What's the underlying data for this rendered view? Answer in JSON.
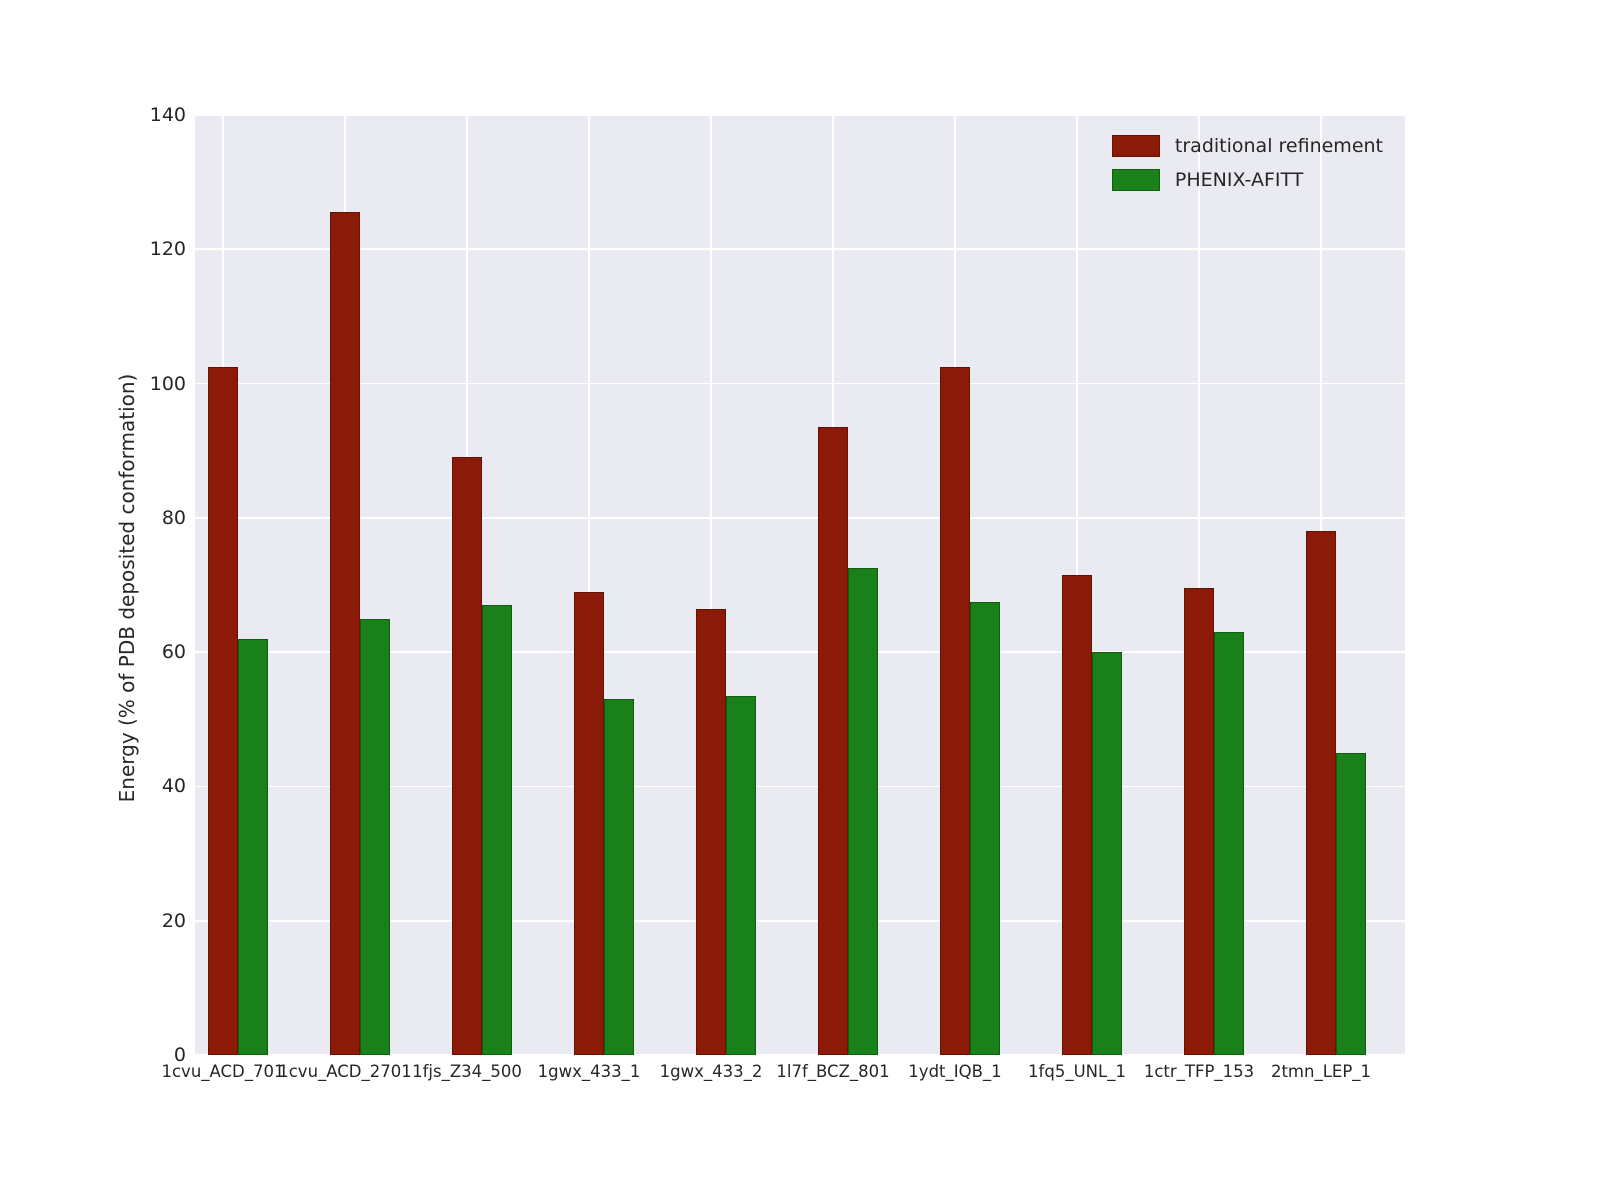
{
  "chart_data": {
    "type": "bar",
    "title": "",
    "xlabel": "",
    "ylabel": "Energy (% of PDB deposited conformation)",
    "ylim": [
      0,
      140
    ],
    "yticks": [
      0,
      20,
      40,
      60,
      80,
      100,
      120,
      140
    ],
    "grid": true,
    "legend_position": "upper right",
    "plot_background": "#eaeaf2",
    "categories": [
      "1cvu_ACD_701",
      "1cvu_ACD_2701",
      "1fjs_Z34_500",
      "1gwx_433_1",
      "1gwx_433_2",
      "1l7f_BCZ_801",
      "1ydt_IQB_1",
      "1fq5_UNL_1",
      "1ctr_TFP_153",
      "2tmn_LEP_1"
    ],
    "series": [
      {
        "name": "traditional refinement",
        "color": "#8b1a09",
        "values": [
          102.5,
          125.5,
          89,
          69,
          66.5,
          93.5,
          102.5,
          71.5,
          69.5,
          78
        ]
      },
      {
        "name": "PHENIX-AFITT",
        "color": "#1a801a",
        "values": [
          62,
          65,
          67,
          53,
          53.5,
          72.5,
          67.5,
          60,
          63,
          45
        ]
      }
    ]
  }
}
